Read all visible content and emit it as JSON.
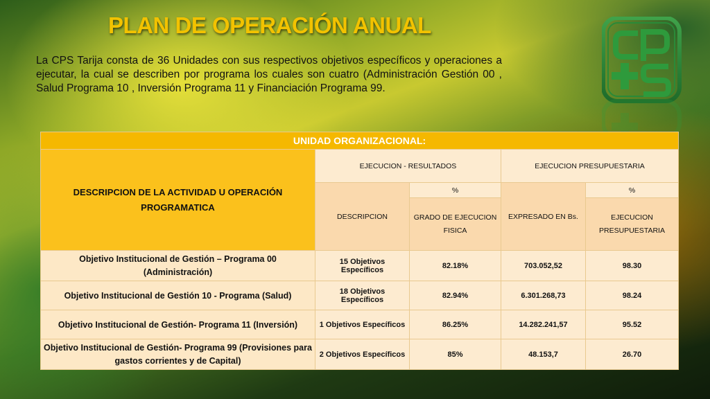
{
  "title": "PLAN DE OPERACIÓN ANUAL",
  "intro": "La CPS Tarija consta de 36 Unidades con sus respectivos objetivos específicos y operaciones a ejecutar, la cual se describen por programa los cuales son cuatro (Administración Gestión 00  , Salud Programa 10 , Inversión Programa 11  y Financiación Programa 99.",
  "logo": {
    "icon": "cps-logo",
    "text": "CPS"
  },
  "table": {
    "band": "UNIDAD ORGANIZACIONAL:",
    "desc_header": "DESCRIPCION DE LA ACTIVIDAD U OPERACIÓN PROGRAMATICA",
    "ejec_resultados": "EJECUCION - RESULTADOS",
    "ejec_presupuestaria": "EJECUCION PRESUPUESTARIA",
    "pct1": "%",
    "pct2": "%",
    "descripcion": "DESCRIPCION",
    "grado": "GRADO DE EJECUCION FISICA",
    "expresado": "EXPRESADO EN Bs.",
    "ejec_pres_sub": "EJECUCION PRESUPUESTARIA",
    "rows": [
      {
        "label": "Objetivo Institucional de Gestión – Programa 00 (Administración)",
        "desc": "15 Objetivos Específicos",
        "grado": "82.18%",
        "bs": "703.052,52",
        "pct": "98.30"
      },
      {
        "label": "Objetivo Institucional de Gestión 10 - Programa (Salud)",
        "desc": "18 Objetivos Específicos",
        "grado": "82.94%",
        "bs": "6.301.268,73",
        "pct": "98.24"
      },
      {
        "label": "Objetivo Institucional de Gestión- Programa 11 (Inversión)",
        "desc": "1 Objetivos Específicos",
        "grado": "86.25%",
        "bs": "14.282.241,57",
        "pct": "95.52"
      },
      {
        "label": "Objetivo Institucional de Gestión- Programa 99 (Provisiones para gastos corrientes y de Capital)",
        "desc": "2 Objetivos Específicos",
        "grado": "85%",
        "bs": "48.153,7",
        "pct": "26.70"
      }
    ]
  }
}
